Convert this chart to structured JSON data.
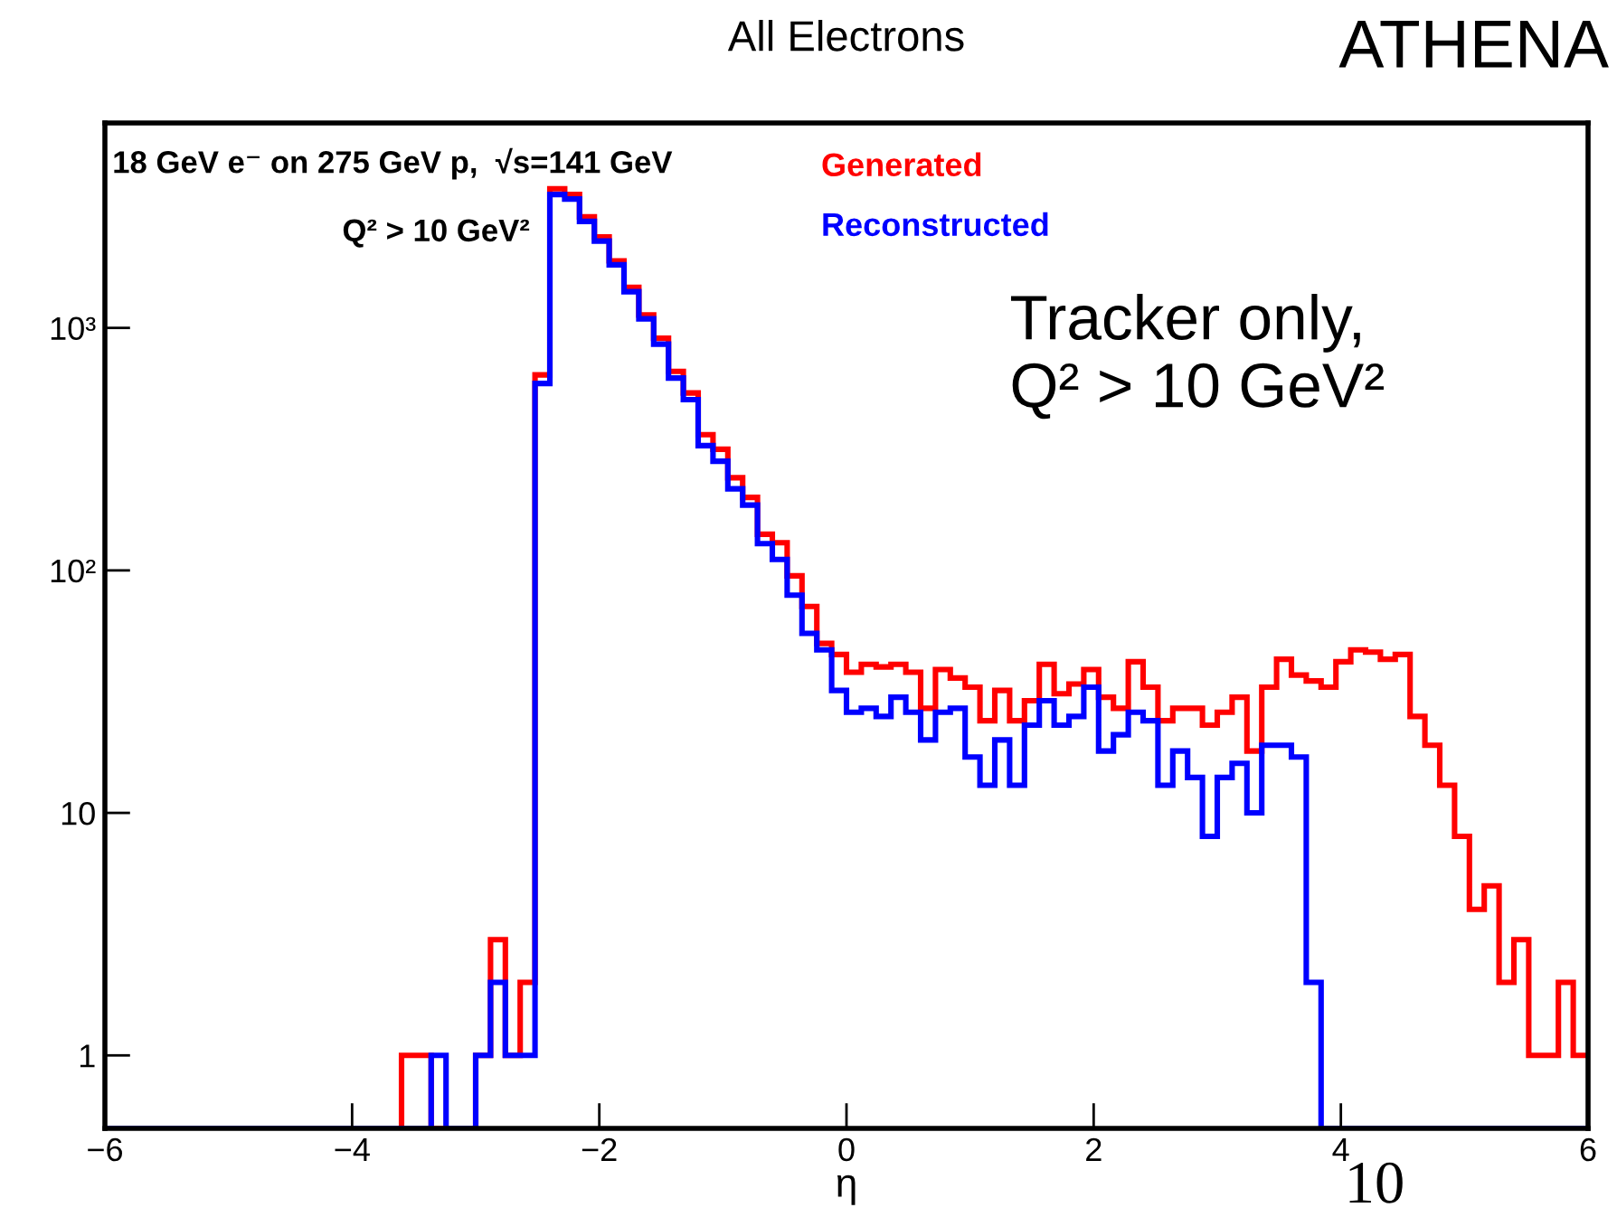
{
  "chart_data": {
    "type": "histogram",
    "title": "All Electrons",
    "xlabel": "η",
    "annotations": [
      "18 GeV e⁻ on 275 GeV p,  √s=141 GeV",
      "Q² > 10 GeV²",
      "Tracker only,\nQ² > 10 GeV²",
      "ATHENA",
      "10"
    ],
    "bins": [
      -6,
      -5.88,
      -5.76,
      -5.64,
      -5.52,
      -5.4,
      -5.28,
      -5.16,
      -5.04,
      -4.92,
      -4.8,
      -4.68,
      -4.56,
      -4.44,
      -4.32,
      -4.2,
      -4.08,
      -3.96,
      -3.84,
      -3.72,
      -3.6,
      -3.48,
      -3.36,
      -3.24,
      -3.12,
      -3,
      -2.88,
      -2.76,
      -2.64,
      -2.52,
      -2.4,
      -2.28,
      -2.16,
      -2.04,
      -1.92,
      -1.8,
      -1.68,
      -1.56,
      -1.44,
      -1.32,
      -1.2,
      -1.08,
      -0.96,
      -0.84,
      -0.72,
      -0.6,
      -0.48,
      -0.36,
      -0.24,
      -0.12,
      0,
      0.12,
      0.24,
      0.36,
      0.48,
      0.6,
      0.72,
      0.84,
      0.96,
      1.08,
      1.2,
      1.32,
      1.44,
      1.56,
      1.68,
      1.8,
      1.92,
      2.04,
      2.16,
      2.28,
      2.4,
      2.52,
      2.64,
      2.76,
      2.88,
      3,
      3.12,
      3.24,
      3.36,
      3.48,
      3.6,
      3.72,
      3.84,
      3.96,
      4.08,
      4.2,
      4.32,
      4.44,
      4.56,
      4.68,
      4.8,
      4.92,
      5.04,
      5.16,
      5.28,
      5.4,
      5.52,
      5.64,
      5.76,
      5.88,
      6
    ],
    "series": [
      {
        "name": "Generated",
        "color": "#ff0000",
        "values": [
          null,
          null,
          null,
          null,
          null,
          null,
          null,
          null,
          null,
          null,
          null,
          null,
          null,
          null,
          null,
          null,
          null,
          null,
          null,
          null,
          1,
          1,
          null,
          null,
          null,
          1,
          3,
          1,
          2,
          640,
          3750,
          3550,
          2870,
          2370,
          1890,
          1470,
          1130,
          906,
          662,
          539,
          363,
          316,
          241,
          200,
          141,
          130,
          95,
          71,
          50,
          45,
          38,
          41,
          40,
          41,
          38,
          27,
          39,
          36,
          33,
          24,
          32,
          24,
          29,
          41,
          31,
          34,
          39,
          30,
          27,
          42,
          33,
          24,
          27,
          27,
          23,
          26,
          30,
          18,
          33,
          43,
          37,
          35,
          33,
          42,
          47,
          46,
          43,
          45,
          25,
          19,
          13,
          8,
          4,
          5,
          2,
          3,
          1,
          1,
          2,
          1
        ]
      },
      {
        "name": "Reconstructed",
        "color": "#0000ff",
        "values": [
          null,
          null,
          null,
          null,
          null,
          null,
          null,
          null,
          null,
          null,
          null,
          null,
          null,
          null,
          null,
          null,
          null,
          null,
          null,
          null,
          null,
          null,
          1,
          null,
          null,
          1,
          2,
          1,
          1,
          590,
          3550,
          3400,
          2750,
          2280,
          1820,
          1410,
          1090,
          857,
          621,
          506,
          327,
          282,
          217,
          186,
          129,
          111,
          79,
          55,
          47,
          32,
          26,
          27,
          25,
          30,
          26,
          20,
          26,
          27,
          17,
          13,
          20,
          13,
          23,
          29,
          23,
          25,
          33,
          18,
          21,
          26,
          24,
          13,
          18,
          14,
          8,
          14,
          16,
          10,
          19,
          19,
          17,
          2,
          null,
          null,
          null,
          null,
          null,
          null,
          null,
          null,
          null,
          null,
          null,
          null,
          null,
          null,
          null,
          null,
          null,
          null
        ]
      }
    ],
    "log": "y",
    "xlim": [
      -6,
      6
    ],
    "ylim": [
      0.5,
      7000
    ],
    "xticks": [
      {
        "value": -6,
        "label": "−6"
      },
      {
        "value": -4,
        "label": "−4"
      },
      {
        "value": -2,
        "label": "−2"
      },
      0,
      2,
      4,
      6
    ],
    "yticks": [
      1,
      10,
      {
        "value": 100,
        "label": "10²"
      },
      {
        "value": 1000,
        "label": "10³"
      }
    ],
    "grid": false,
    "legend": "top"
  }
}
